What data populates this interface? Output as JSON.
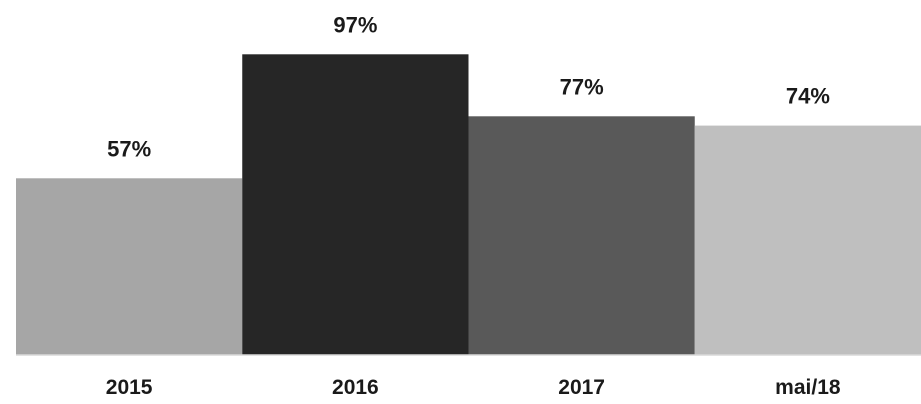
{
  "chart_data": {
    "type": "bar",
    "categories": [
      "2015",
      "2016",
      "2017",
      "mai/18"
    ],
    "values": [
      57,
      97,
      77,
      74
    ],
    "data_labels": [
      "57%",
      "97%",
      "77%",
      "74%"
    ],
    "colors": [
      "#a6a6a6",
      "#262626",
      "#595959",
      "#bfbfbf"
    ],
    "title": "",
    "xlabel": "",
    "ylabel": "",
    "ylim": [
      0,
      100
    ],
    "grid": false,
    "legend": "none"
  }
}
